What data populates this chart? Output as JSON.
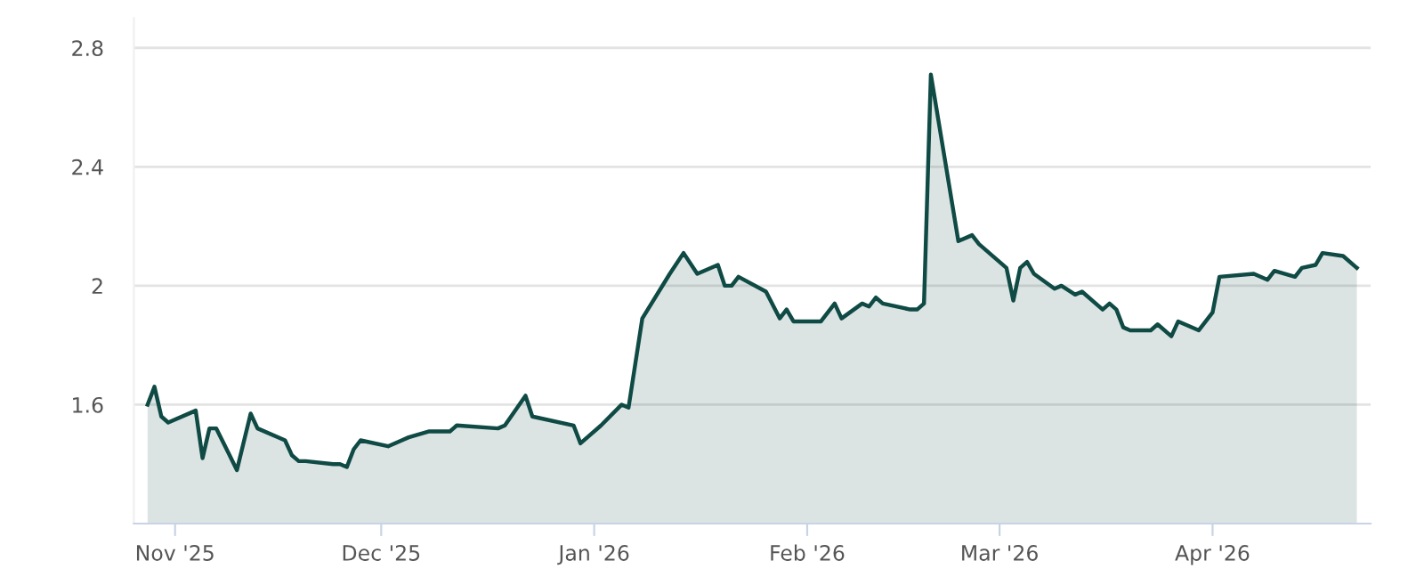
{
  "chart_data": {
    "type": "area",
    "x": [
      "2025-10-28",
      "2025-10-29",
      "2025-10-30",
      "2025-10-31",
      "2025-11-04",
      "2025-11-05",
      "2025-11-06",
      "2025-11-07",
      "2025-11-10",
      "2025-11-12",
      "2025-11-13",
      "2025-11-17",
      "2025-11-18",
      "2025-11-19",
      "2025-11-20",
      "2025-11-24",
      "2025-11-25",
      "2025-11-26",
      "2025-11-27",
      "2025-11-28",
      "2025-12-02",
      "2025-12-04",
      "2025-12-05",
      "2025-12-08",
      "2025-12-11",
      "2025-12-12",
      "2025-12-18",
      "2025-12-19",
      "2025-12-22",
      "2025-12-23",
      "2025-12-29",
      "2025-12-30",
      "2026-01-02",
      "2026-01-05",
      "2026-01-06",
      "2026-01-08",
      "2026-01-12",
      "2026-01-14",
      "2026-01-16",
      "2026-01-19",
      "2026-01-20",
      "2026-01-21",
      "2026-01-22",
      "2026-01-26",
      "2026-01-28",
      "2026-01-29",
      "2026-01-30",
      "2026-02-03",
      "2026-02-05",
      "2026-02-06",
      "2026-02-09",
      "2026-02-10",
      "2026-02-11",
      "2026-02-12",
      "2026-02-16",
      "2026-02-17",
      "2026-02-18",
      "2026-02-19",
      "2026-02-23",
      "2026-02-25",
      "2026-02-26",
      "2026-03-02",
      "2026-03-03",
      "2026-03-04",
      "2026-03-05",
      "2026-03-06",
      "2026-03-09",
      "2026-03-10",
      "2026-03-12",
      "2026-03-13",
      "2026-03-16",
      "2026-03-17",
      "2026-03-18",
      "2026-03-19",
      "2026-03-20",
      "2026-03-23",
      "2026-03-24",
      "2026-03-26",
      "2026-03-27",
      "2026-03-30",
      "2026-04-01",
      "2026-04-02",
      "2026-04-07",
      "2026-04-09",
      "2026-04-10",
      "2026-04-13",
      "2026-04-14",
      "2026-04-16",
      "2026-04-17",
      "2026-04-20",
      "2026-04-22"
    ],
    "series": [
      {
        "color": "#0f4a44",
        "values": [
          1.6,
          1.66,
          1.56,
          1.54,
          1.58,
          1.42,
          1.52,
          1.52,
          1.38,
          1.57,
          1.52,
          1.48,
          1.43,
          1.41,
          1.41,
          1.4,
          1.4,
          1.39,
          1.45,
          1.48,
          1.46,
          1.48,
          1.49,
          1.51,
          1.51,
          1.53,
          1.52,
          1.53,
          1.63,
          1.56,
          1.53,
          1.47,
          1.53,
          1.6,
          1.59,
          1.89,
          2.04,
          2.11,
          2.04,
          2.07,
          2.0,
          2.0,
          2.03,
          1.98,
          1.89,
          1.92,
          1.88,
          1.88,
          1.94,
          1.89,
          1.94,
          1.93,
          1.96,
          1.94,
          1.92,
          1.92,
          1.94,
          2.71,
          2.15,
          2.17,
          2.14,
          2.06,
          1.95,
          2.06,
          2.08,
          2.04,
          1.99,
          2.0,
          1.97,
          1.98,
          1.92,
          1.94,
          1.92,
          1.86,
          1.85,
          1.85,
          1.87,
          1.83,
          1.88,
          1.85,
          1.91,
          2.03,
          2.04,
          2.02,
          2.05,
          2.03,
          2.06,
          2.07,
          2.11,
          2.1,
          2.06
        ]
      }
    ],
    "xlim": [
      "2025-10-26",
      "2026-04-24"
    ],
    "xticks": [
      {
        "value": "2025-11-01",
        "label": "Nov '25"
      },
      {
        "value": "2025-12-01",
        "label": "Dec '25"
      },
      {
        "value": "2026-01-01",
        "label": "Jan '26"
      },
      {
        "value": "2026-02-01",
        "label": "Feb '26"
      },
      {
        "value": "2026-03-01",
        "label": "Mar '26"
      },
      {
        "value": "2026-04-01",
        "label": "Apr '26"
      }
    ],
    "ylim": [
      1.2,
      2.9
    ],
    "yticks": [
      1.6,
      2,
      2.4,
      2.8
    ],
    "grid": "y",
    "legend": false
  }
}
